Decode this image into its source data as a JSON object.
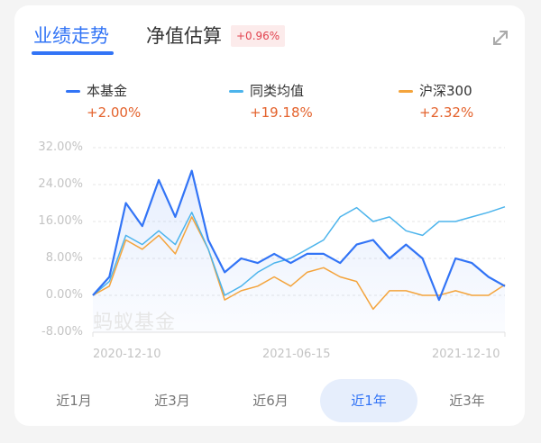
{
  "header": {
    "tabs": [
      {
        "label": "业绩走势",
        "active": true
      },
      {
        "label": "净值估算",
        "active": false
      }
    ],
    "estimate_badge": "+0.96%",
    "expand_icon": "expand-arrows-icon"
  },
  "legend": [
    {
      "name": "本基金",
      "value": "+2.00%",
      "color": "#3274f6"
    },
    {
      "name": "同类均值",
      "value": "+19.18%",
      "color": "#4cb4ec"
    },
    {
      "name": "沪深300",
      "value": "+2.32%",
      "color": "#f4a43c"
    }
  ],
  "chart": {
    "watermark": "蚂蚁基金",
    "y_ticks": [
      "32.00%",
      "24.00%",
      "16.00%",
      "8.00%",
      "0.00%",
      "-8.00%"
    ],
    "x_ticks": [
      "2020-12-10",
      "2021-06-15",
      "2021-12-10"
    ]
  },
  "periods": [
    {
      "label": "近1月",
      "active": false
    },
    {
      "label": "近3月",
      "active": false
    },
    {
      "label": "近6月",
      "active": false
    },
    {
      "label": "近1年",
      "active": true
    },
    {
      "label": "近3年",
      "active": false
    }
  ],
  "chart_data": {
    "type": "line",
    "title": "业绩走势",
    "xlabel": "",
    "ylabel": "",
    "ylim": [
      -8,
      32
    ],
    "y_ticks": [
      -8,
      0,
      8,
      16,
      24,
      32
    ],
    "x_tick_labels": [
      "2020-12-10",
      "2021-06-15",
      "2021-12-10"
    ],
    "grid": true,
    "legend_position": "top",
    "x": [
      "2020-12-10",
      "2021-01-05",
      "2021-01-20",
      "2021-02-01",
      "2021-02-10",
      "2021-02-20",
      "2021-03-05",
      "2021-03-20",
      "2021-04-05",
      "2021-04-20",
      "2021-05-05",
      "2021-05-20",
      "2021-06-05",
      "2021-06-15",
      "2021-06-30",
      "2021-07-15",
      "2021-07-30",
      "2021-08-15",
      "2021-08-30",
      "2021-09-15",
      "2021-09-30",
      "2021-10-15",
      "2021-10-30",
      "2021-11-15",
      "2021-11-30",
      "2021-12-10"
    ],
    "series": [
      {
        "name": "本基金",
        "color": "#3274f6",
        "final": 2.0,
        "values": [
          0,
          4,
          20,
          15,
          25,
          17,
          27,
          12,
          5,
          8,
          7,
          9,
          7,
          9,
          9,
          7,
          11,
          12,
          8,
          11,
          8,
          -1,
          8,
          7,
          4,
          2
        ]
      },
      {
        "name": "同类均值",
        "color": "#4cb4ec",
        "final": 19.18,
        "values": [
          0,
          3,
          13,
          11,
          14,
          11,
          18,
          10,
          0,
          2,
          5,
          7,
          8,
          10,
          12,
          17,
          19,
          16,
          17,
          14,
          13,
          16,
          16,
          17,
          18,
          19.18
        ]
      },
      {
        "name": "沪深300",
        "color": "#f4a43c",
        "final": 2.32,
        "values": [
          0,
          2,
          12,
          10,
          13,
          9,
          17,
          10,
          -1,
          1,
          2,
          4,
          2,
          5,
          6,
          4,
          3,
          -3,
          1,
          1,
          0,
          0,
          1,
          0,
          0,
          2.32
        ]
      }
    ]
  }
}
